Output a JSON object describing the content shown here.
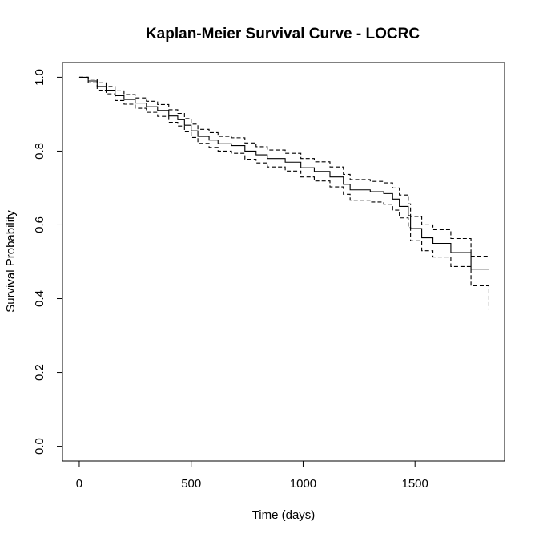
{
  "chart_data": {
    "type": "line",
    "title": "Kaplan-Meier Survival Curve - LOCRC",
    "xlabel": "Time (days)",
    "ylabel": "Survival Probability",
    "xlim": [
      -75,
      1900
    ],
    "ylim": [
      -0.04,
      1.04
    ],
    "xticks": [
      0,
      500,
      1000,
      1500
    ],
    "yticks": [
      0.0,
      0.2,
      0.4,
      0.6,
      0.8,
      1.0
    ],
    "xtick_labels": [
      "0",
      "500",
      "1000",
      "1500"
    ],
    "ytick_labels": [
      "0.0",
      "0.2",
      "0.4",
      "0.6",
      "0.8",
      "1.0"
    ],
    "grid": false,
    "series": [
      {
        "role": "estimate",
        "style": "solid",
        "step": true,
        "x": [
          0,
          40,
          80,
          120,
          160,
          200,
          250,
          300,
          350,
          400,
          440,
          470,
          500,
          530,
          580,
          620,
          680,
          740,
          790,
          840,
          920,
          990,
          1050,
          1120,
          1180,
          1210,
          1300,
          1360,
          1400,
          1430,
          1470,
          1480,
          1530,
          1580,
          1660,
          1750,
          1830
        ],
        "y": [
          1.0,
          0.99,
          0.975,
          0.965,
          0.95,
          0.94,
          0.93,
          0.92,
          0.91,
          0.895,
          0.885,
          0.87,
          0.855,
          0.84,
          0.83,
          0.82,
          0.815,
          0.8,
          0.79,
          0.78,
          0.77,
          0.755,
          0.745,
          0.73,
          0.71,
          0.695,
          0.69,
          0.685,
          0.67,
          0.65,
          0.625,
          0.59,
          0.565,
          0.55,
          0.525,
          0.48,
          0.48
        ]
      },
      {
        "role": "upper 95% CI",
        "style": "dashed",
        "step": true,
        "x": [
          0,
          40,
          80,
          120,
          160,
          200,
          250,
          300,
          350,
          400,
          440,
          470,
          500,
          530,
          580,
          620,
          680,
          740,
          790,
          840,
          920,
          990,
          1050,
          1120,
          1180,
          1210,
          1300,
          1360,
          1400,
          1430,
          1470,
          1480,
          1530,
          1580,
          1660,
          1750,
          1830
        ],
        "y": [
          1.0,
          0.995,
          0.985,
          0.975,
          0.963,
          0.953,
          0.944,
          0.935,
          0.926,
          0.912,
          0.902,
          0.888,
          0.873,
          0.859,
          0.85,
          0.84,
          0.836,
          0.822,
          0.812,
          0.803,
          0.794,
          0.78,
          0.771,
          0.757,
          0.737,
          0.723,
          0.718,
          0.714,
          0.7,
          0.681,
          0.657,
          0.623,
          0.6,
          0.587,
          0.563,
          0.515,
          0.515
        ]
      },
      {
        "role": "lower 95% CI",
        "style": "dashed",
        "step": true,
        "x": [
          0,
          40,
          80,
          120,
          160,
          200,
          250,
          300,
          350,
          400,
          440,
          470,
          500,
          530,
          580,
          620,
          680,
          740,
          790,
          840,
          920,
          990,
          1050,
          1120,
          1180,
          1210,
          1300,
          1360,
          1400,
          1430,
          1470,
          1480,
          1530,
          1580,
          1660,
          1750,
          1830
        ],
        "y": [
          1.0,
          0.985,
          0.965,
          0.955,
          0.937,
          0.927,
          0.916,
          0.905,
          0.894,
          0.878,
          0.868,
          0.852,
          0.837,
          0.821,
          0.81,
          0.8,
          0.794,
          0.778,
          0.768,
          0.757,
          0.746,
          0.73,
          0.719,
          0.703,
          0.683,
          0.667,
          0.662,
          0.656,
          0.64,
          0.619,
          0.593,
          0.557,
          0.53,
          0.513,
          0.487,
          0.435,
          0.37
        ]
      }
    ]
  }
}
